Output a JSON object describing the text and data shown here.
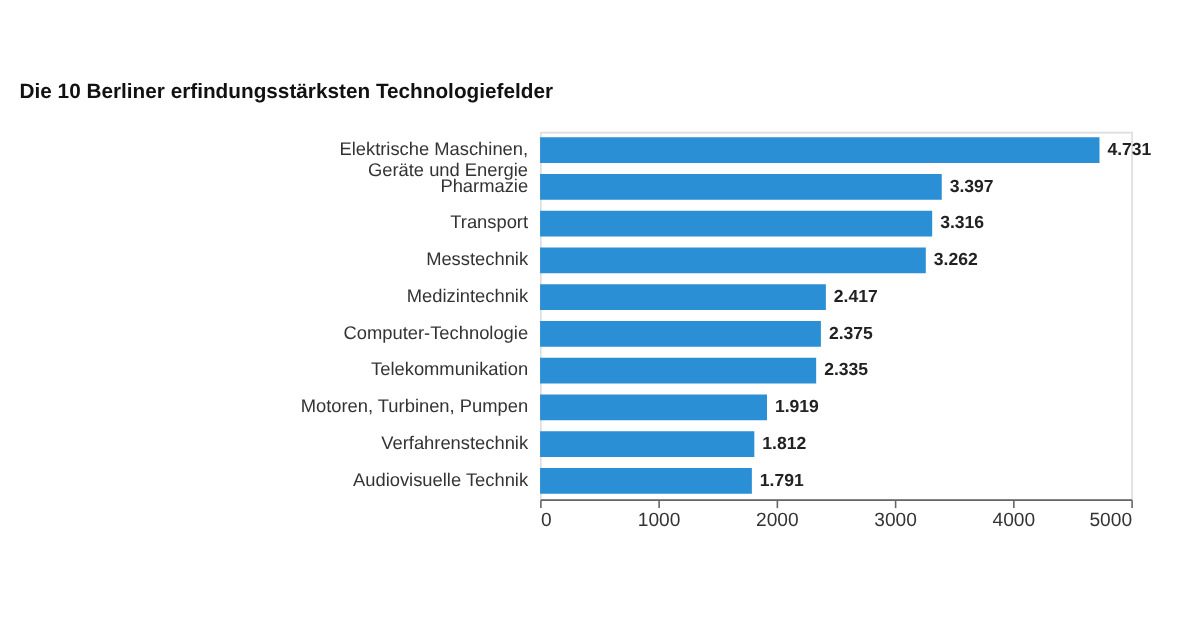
{
  "chart_data": {
    "type": "bar",
    "orientation": "horizontal",
    "title": "Die 10 Berliner erfindungsstärksten Technologiefelder",
    "categories": [
      "Elektrische Maschinen, Geräte und Energie",
      "Pharmazie",
      "Transport",
      "Messtechnik",
      "Medizintechnik",
      "Computer-Technologie",
      "Telekommunikation",
      "Motoren, Turbinen, Pumpen",
      "Verfahrenstechnik",
      "Audiovisuelle Technik"
    ],
    "values": [
      4731,
      3397,
      3316,
      3262,
      2417,
      2375,
      2335,
      1919,
      1812,
      1791
    ],
    "value_labels": [
      "4.731",
      "3.397",
      "3.316",
      "3.262",
      "2.417",
      "2.375",
      "2.335",
      "1.919",
      "1.812",
      "1.791"
    ],
    "color": "#2a8fd4",
    "xlim": [
      0,
      5000
    ],
    "xticks": [
      0,
      1000,
      2000,
      3000,
      4000,
      5000
    ],
    "grid": false
  }
}
